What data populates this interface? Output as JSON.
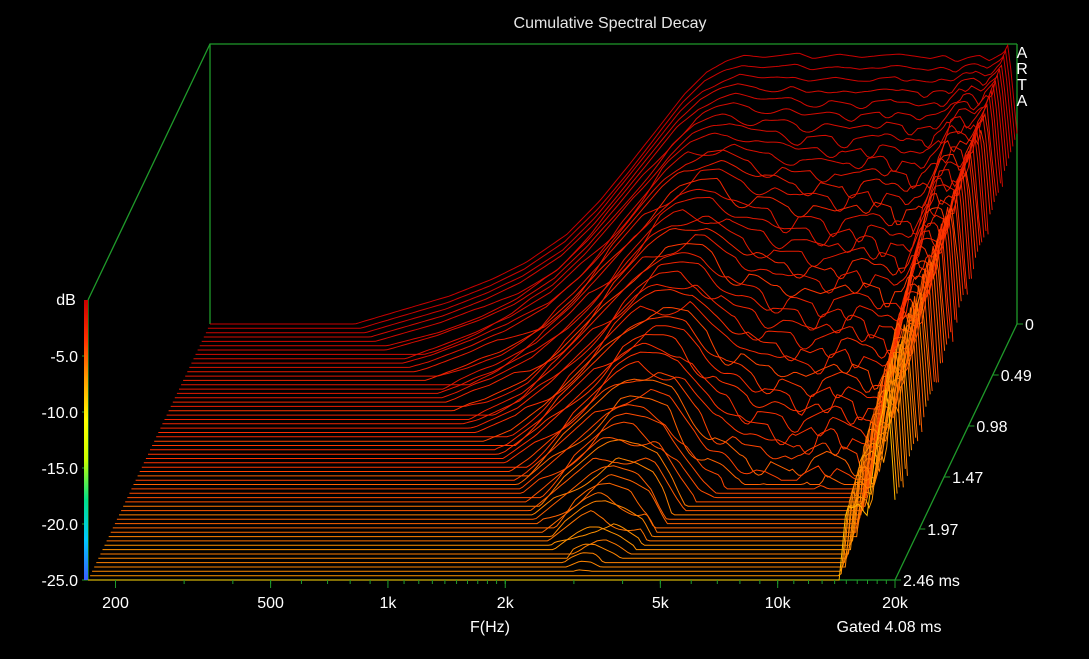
{
  "chart_data": {
    "type": "waterfall",
    "title": "Cumulative Spectral Decay",
    "watermark": "ARTA",
    "xlabel": "F(Hz)",
    "ylabel": "dB",
    "footer": "Gated 4.08 ms",
    "x_scale": "log",
    "xlim_hz": [
      170,
      20000
    ],
    "ylim_db": [
      -25,
      0
    ],
    "x_ticks": [
      {
        "value": 200,
        "label": "200"
      },
      {
        "value": 500,
        "label": "500"
      },
      {
        "value": 1000,
        "label": "1k"
      },
      {
        "value": 2000,
        "label": "2k"
      },
      {
        "value": 5000,
        "label": "5k"
      },
      {
        "value": 10000,
        "label": "10k"
      },
      {
        "value": 20000,
        "label": "20k"
      }
    ],
    "y_ticks": [
      {
        "value": -5,
        "label": "-5.0"
      },
      {
        "value": -10,
        "label": "-10.0"
      },
      {
        "value": -15,
        "label": "-15.0"
      },
      {
        "value": -20,
        "label": "-20.0"
      },
      {
        "value": -25,
        "label": "-25.0"
      }
    ],
    "time_ticks": [
      {
        "value": 0,
        "label": "0"
      },
      {
        "value": 0.49,
        "label": "0.49"
      },
      {
        "value": 0.98,
        "label": "0.98"
      },
      {
        "value": 1.47,
        "label": "1.47"
      },
      {
        "value": 1.97,
        "label": "1.97"
      },
      {
        "value": 2.46,
        "label": "2.46 ms"
      }
    ],
    "time_range_ms": [
      0,
      2.46
    ],
    "slice_count": 60,
    "initial_response": {
      "freq_hz": [
        170,
        300,
        400,
        500,
        700,
        900,
        1100,
        1400,
        1700,
        2000,
        2400,
        2800,
        3200,
        3600,
        4000,
        4500,
        5000,
        5500,
        6000,
        7000,
        8000,
        9000,
        10000,
        11000,
        12000,
        13000,
        14000,
        15000,
        16000,
        17000,
        18000,
        18500,
        19000,
        19500,
        20000
      ],
      "db": [
        -25,
        -25,
        -25,
        -24,
        -22.5,
        -21,
        -19.5,
        -17,
        -14,
        -11,
        -7.5,
        -4.5,
        -2.5,
        -1.5,
        -1.0,
        -1.2,
        -1.0,
        -0.8,
        -1.3,
        -0.9,
        -1.2,
        -1.0,
        -0.9,
        -1.1,
        -1.3,
        -1.0,
        -1.6,
        -1.2,
        -1.0,
        -1.5,
        -1.0,
        -0.8,
        0,
        -4,
        -8
      ]
    },
    "decay_db_per_ms": {
      "freq_hz": [
        170,
        1000,
        2000,
        3000,
        4000,
        5000,
        6000,
        8000,
        10000,
        13000,
        15000,
        17000,
        19000,
        20000
      ],
      "rate": [
        4,
        5,
        7.5,
        9,
        11,
        14,
        15,
        16,
        15,
        16,
        7,
        7,
        2.5,
        4
      ]
    },
    "colormap": [
      "#3b5cff",
      "#00c8ff",
      "#00e08a",
      "#c8ff00",
      "#ffff00",
      "#ffa000",
      "#ff3000",
      "#c80000"
    ]
  }
}
